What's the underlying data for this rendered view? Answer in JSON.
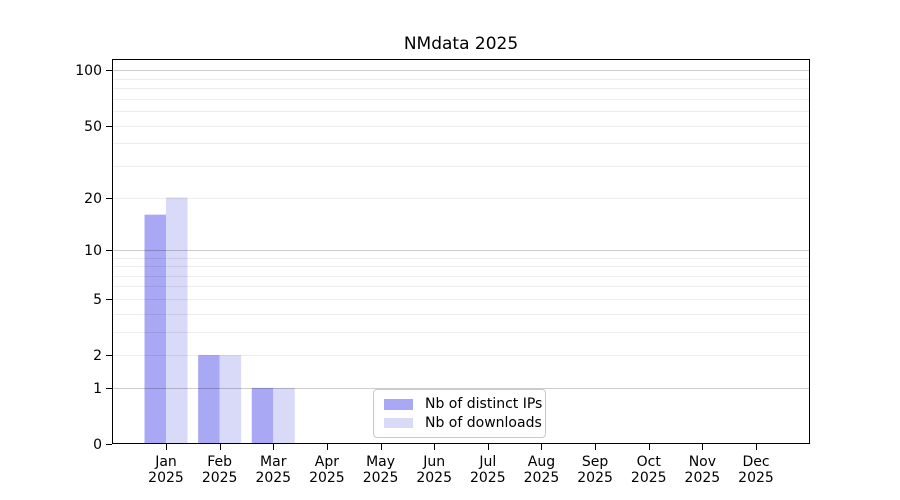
{
  "chart_data": {
    "type": "bar",
    "title": "NMdata 2025",
    "year_label": "2025",
    "categories": [
      "Jan",
      "Feb",
      "Mar",
      "Apr",
      "May",
      "Jun",
      "Jul",
      "Aug",
      "Sep",
      "Oct",
      "Nov",
      "Dec"
    ],
    "series": [
      {
        "name": "Nb of distinct IPs",
        "color": "#a8a8f4",
        "values": [
          16,
          2,
          1,
          0,
          0,
          0,
          0,
          0,
          0,
          0,
          0,
          0
        ]
      },
      {
        "name": "Nb of downloads",
        "color": "#d9d9f8",
        "values": [
          20,
          2,
          1,
          0,
          0,
          0,
          0,
          0,
          0,
          0,
          0,
          0
        ]
      }
    ],
    "y_axis": {
      "scale": "log1p",
      "range": [
        0,
        100
      ],
      "tick_values": [
        0,
        1,
        2,
        5,
        10,
        20,
        50,
        100
      ],
      "major_gridlines": [
        1,
        10,
        100
      ],
      "minor_gridlines": [
        2,
        3,
        4,
        5,
        6,
        7,
        8,
        9,
        20,
        30,
        40,
        50,
        60,
        70,
        80,
        90
      ]
    },
    "legend": {
      "position": "lower center"
    },
    "colors": {
      "axis": "#000000",
      "tick_text": "#000000",
      "major_grid_overlay": "rgba(0,0,0,0.20)",
      "minor_grid_overlay": "rgba(0,0,0,0.07)"
    }
  }
}
